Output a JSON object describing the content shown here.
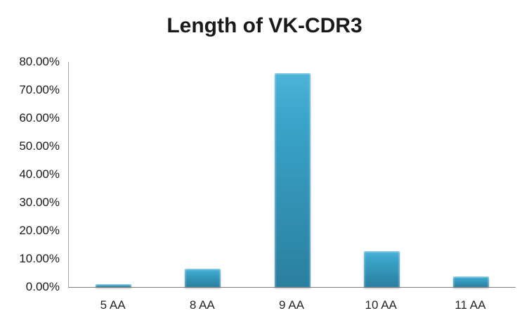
{
  "chart_data": {
    "type": "bar",
    "title": "Length of VK-CDR3",
    "categories": [
      "5 AA",
      "8 AA",
      "9 AA",
      "10 AA",
      "11 AA"
    ],
    "values": [
      0.9,
      6.6,
      75.9,
      12.8,
      3.8
    ],
    "unit": "%",
    "xlabel": "",
    "ylabel": "",
    "ylim": [
      0,
      80
    ],
    "ytick_step": 10,
    "ytick_labels": [
      "0.00%",
      "10.00%",
      "20.00%",
      "30.00%",
      "40.00%",
      "50.00%",
      "60.00%",
      "70.00%",
      "80.00%"
    ],
    "grid": false,
    "legend_position": "none",
    "colors": {
      "bar_gradient_top": "#4db4d9",
      "bar_gradient_upper": "#3aa4ca",
      "bar_gradient_bottom": "#2a7f9e",
      "axis_line": "#a6a6a6",
      "baseline": "#7f7f7f",
      "title_text": "#1a1a1a",
      "tick_text": "#1a1a1a",
      "background": "#ffffff"
    }
  }
}
